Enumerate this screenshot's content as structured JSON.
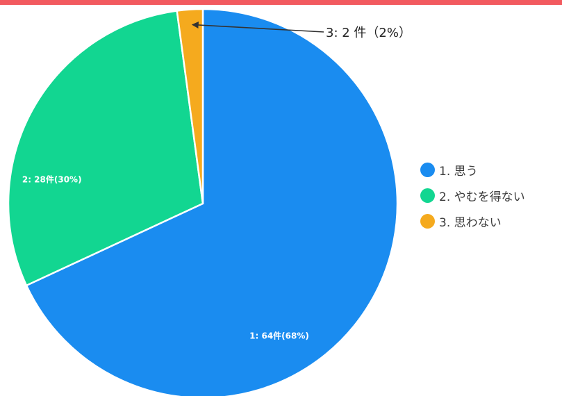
{
  "colors": {
    "border": "#f25a5f",
    "series": [
      "#1a8cf0",
      "#12d691",
      "#f5aa1e"
    ]
  },
  "chart_data": {
    "type": "pie",
    "title": "",
    "series": [
      {
        "categories": [
          "1. 思う",
          "2. やむを得ない",
          "3. 思わない"
        ],
        "counts": [
          64,
          28,
          2
        ],
        "percentages": [
          68,
          30,
          2
        ]
      }
    ],
    "data_labels": [
      "1: 64件(68%)",
      "2: 28件(30%)",
      "3: 2 件（2%）"
    ],
    "start_angle": "12 o'clock",
    "direction": "clockwise",
    "legend": {
      "position": "right",
      "items": [
        "1. 思う",
        "2. やむを得ない",
        "3. 思わない"
      ]
    }
  }
}
